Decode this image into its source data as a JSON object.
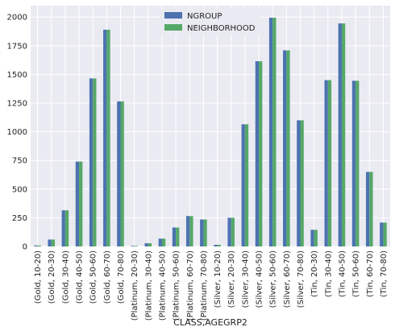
{
  "chart_data": {
    "type": "bar",
    "xlabel": "CLASS,AGEGRP2",
    "ylabel": "",
    "ylim": [
      0,
      2100
    ],
    "yticks": [
      0,
      250,
      500,
      750,
      1000,
      1250,
      1500,
      1750,
      2000
    ],
    "grid": true,
    "legend_position": "top-center",
    "categories": [
      "(Gold, 10-20)",
      "(Gold, 20-30)",
      "(Gold, 30-40)",
      "(Gold, 40-50)",
      "(Gold, 50-60)",
      "(Gold, 60-70)",
      "(Gold, 70-80)",
      "(Platinum, 20-30)",
      "(Platinum, 30-40)",
      "(Platinum, 40-50)",
      "(Platinum, 50-60)",
      "(Platinum, 60-70)",
      "(Platinum, 70-80)",
      "(Silver, 10-20)",
      "(Silver, 20-30)",
      "(Silver, 30-40)",
      "(Silver, 40-50)",
      "(Silver, 50-60)",
      "(Silver, 60-70)",
      "(Silver, 70-80)",
      "(Tin, 20-30)",
      "(Tin, 30-40)",
      "(Tin, 40-50)",
      "(Tin, 50-60)",
      "(Tin, 60-70)",
      "(Tin, 70-80)"
    ],
    "series": [
      {
        "name": "NGROUP",
        "color": "#4c72b0",
        "values": [
          8,
          60,
          315,
          740,
          1465,
          1890,
          1265,
          5,
          28,
          68,
          165,
          265,
          235,
          14,
          250,
          1065,
          1615,
          1995,
          1710,
          1100,
          145,
          1450,
          1945,
          1445,
          650,
          208
        ]
      },
      {
        "name": "NEIGHBORHOOD",
        "color": "#55a868",
        "values": [
          8,
          60,
          315,
          740,
          1465,
          1890,
          1265,
          5,
          28,
          68,
          165,
          265,
          235,
          14,
          250,
          1065,
          1615,
          1995,
          1710,
          1100,
          145,
          1450,
          1945,
          1445,
          650,
          208
        ]
      }
    ]
  }
}
